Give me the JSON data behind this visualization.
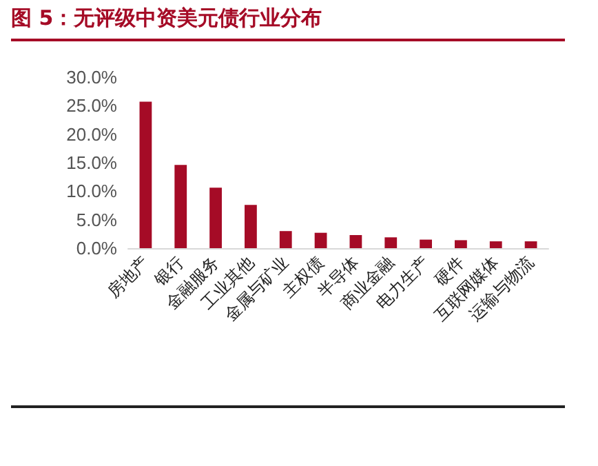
{
  "chart_data": {
    "type": "bar",
    "title": "图 5：无评级中资美元债行业分布",
    "categories": [
      "房地产",
      "银行",
      "金融服务",
      "工业其他",
      "金属与矿业",
      "主权债",
      "半导体",
      "商业金融",
      "电力生产",
      "硬件",
      "互联网媒体",
      "运输与物流"
    ],
    "values": [
      25.7,
      14.6,
      10.6,
      7.6,
      3.0,
      2.7,
      2.3,
      1.9,
      1.5,
      1.4,
      1.2,
      1.2
    ],
    "color": "#a50b26",
    "ylim": [
      0,
      30
    ],
    "yticks": [
      {
        "value": 0,
        "label": "0.0%"
      },
      {
        "value": 5,
        "label": "5.0%"
      },
      {
        "value": 10,
        "label": "10.0%"
      },
      {
        "value": 15,
        "label": "15.0%"
      },
      {
        "value": 20,
        "label": "20.0%"
      },
      {
        "value": 25,
        "label": "25.0%"
      },
      {
        "value": 30,
        "label": "30.0%"
      }
    ],
    "grid": false
  }
}
